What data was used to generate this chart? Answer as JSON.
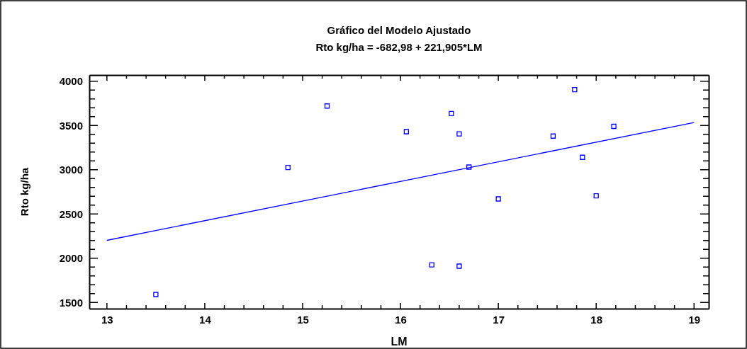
{
  "chart_data": {
    "type": "scatter",
    "title": "Gráfico del Modelo Ajustado",
    "subtitle": "Rto kg/ha = -682,98 + 221,905*LM",
    "xlabel": "LM",
    "ylabel": "Rto kg/ha",
    "grid": false,
    "xlim": [
      12.82,
      19.15
    ],
    "ylim": [
      1430,
      4070
    ],
    "xticks": [
      13,
      {
        "value": 13.2,
        "label": null
      },
      {
        "value": 13.4,
        "label": null
      },
      {
        "value": 13.6,
        "label": null
      },
      {
        "value": 13.8,
        "label": null
      },
      14,
      {
        "value": 14.2,
        "label": null
      },
      {
        "value": 14.4,
        "label": null
      },
      {
        "value": 14.6,
        "label": null
      },
      {
        "value": 14.8,
        "label": null
      },
      15,
      {
        "value": 15.2,
        "label": null
      },
      {
        "value": 15.4,
        "label": null
      },
      {
        "value": 15.6,
        "label": null
      },
      {
        "value": 15.8,
        "label": null
      },
      16,
      {
        "value": 16.2,
        "label": null
      },
      {
        "value": 16.4,
        "label": null
      },
      {
        "value": 16.6,
        "label": null
      },
      {
        "value": 16.8,
        "label": null
      },
      17,
      {
        "value": 17.2,
        "label": null
      },
      {
        "value": 17.4,
        "label": null
      },
      {
        "value": 17.6,
        "label": null
      },
      {
        "value": 17.8,
        "label": null
      },
      18,
      {
        "value": 18.2,
        "label": null
      },
      {
        "value": 18.4,
        "label": null
      },
      {
        "value": 18.6,
        "label": null
      },
      {
        "value": 18.8,
        "label": null
      },
      19
    ],
    "yticks": [
      1500,
      {
        "value": 1600,
        "label": null
      },
      {
        "value": 1700,
        "label": null
      },
      {
        "value": 1800,
        "label": null
      },
      {
        "value": 1900,
        "label": null
      },
      2000,
      {
        "value": 2100,
        "label": null
      },
      {
        "value": 2200,
        "label": null
      },
      {
        "value": 2300,
        "label": null
      },
      {
        "value": 2400,
        "label": null
      },
      2500,
      {
        "value": 2600,
        "label": null
      },
      {
        "value": 2700,
        "label": null
      },
      {
        "value": 2800,
        "label": null
      },
      {
        "value": 2900,
        "label": null
      },
      3000,
      {
        "value": 3100,
        "label": null
      },
      {
        "value": 3200,
        "label": null
      },
      {
        "value": 3300,
        "label": null
      },
      {
        "value": 3400,
        "label": null
      },
      3500,
      {
        "value": 3600,
        "label": null
      },
      {
        "value": 3700,
        "label": null
      },
      {
        "value": 3800,
        "label": null
      },
      {
        "value": 3900,
        "label": null
      },
      4000
    ],
    "series": [
      {
        "marker": "square",
        "color": "#0000ff",
        "x": [
          13.5,
          14.85,
          15.25,
          16.06,
          16.52,
          16.6,
          16.32,
          16.6,
          16.7,
          17.0,
          17.56,
          17.78,
          17.86,
          18.0,
          18.18
        ],
        "values": [
          1590,
          3025,
          3720,
          3430,
          3635,
          3405,
          1925,
          1910,
          3030,
          2670,
          3380,
          3905,
          3140,
          2705,
          3490
        ]
      },
      {
        "type": "line",
        "color": "#0000ff",
        "x": [
          13,
          19
        ],
        "values": [
          2202,
          3533
        ]
      }
    ]
  }
}
